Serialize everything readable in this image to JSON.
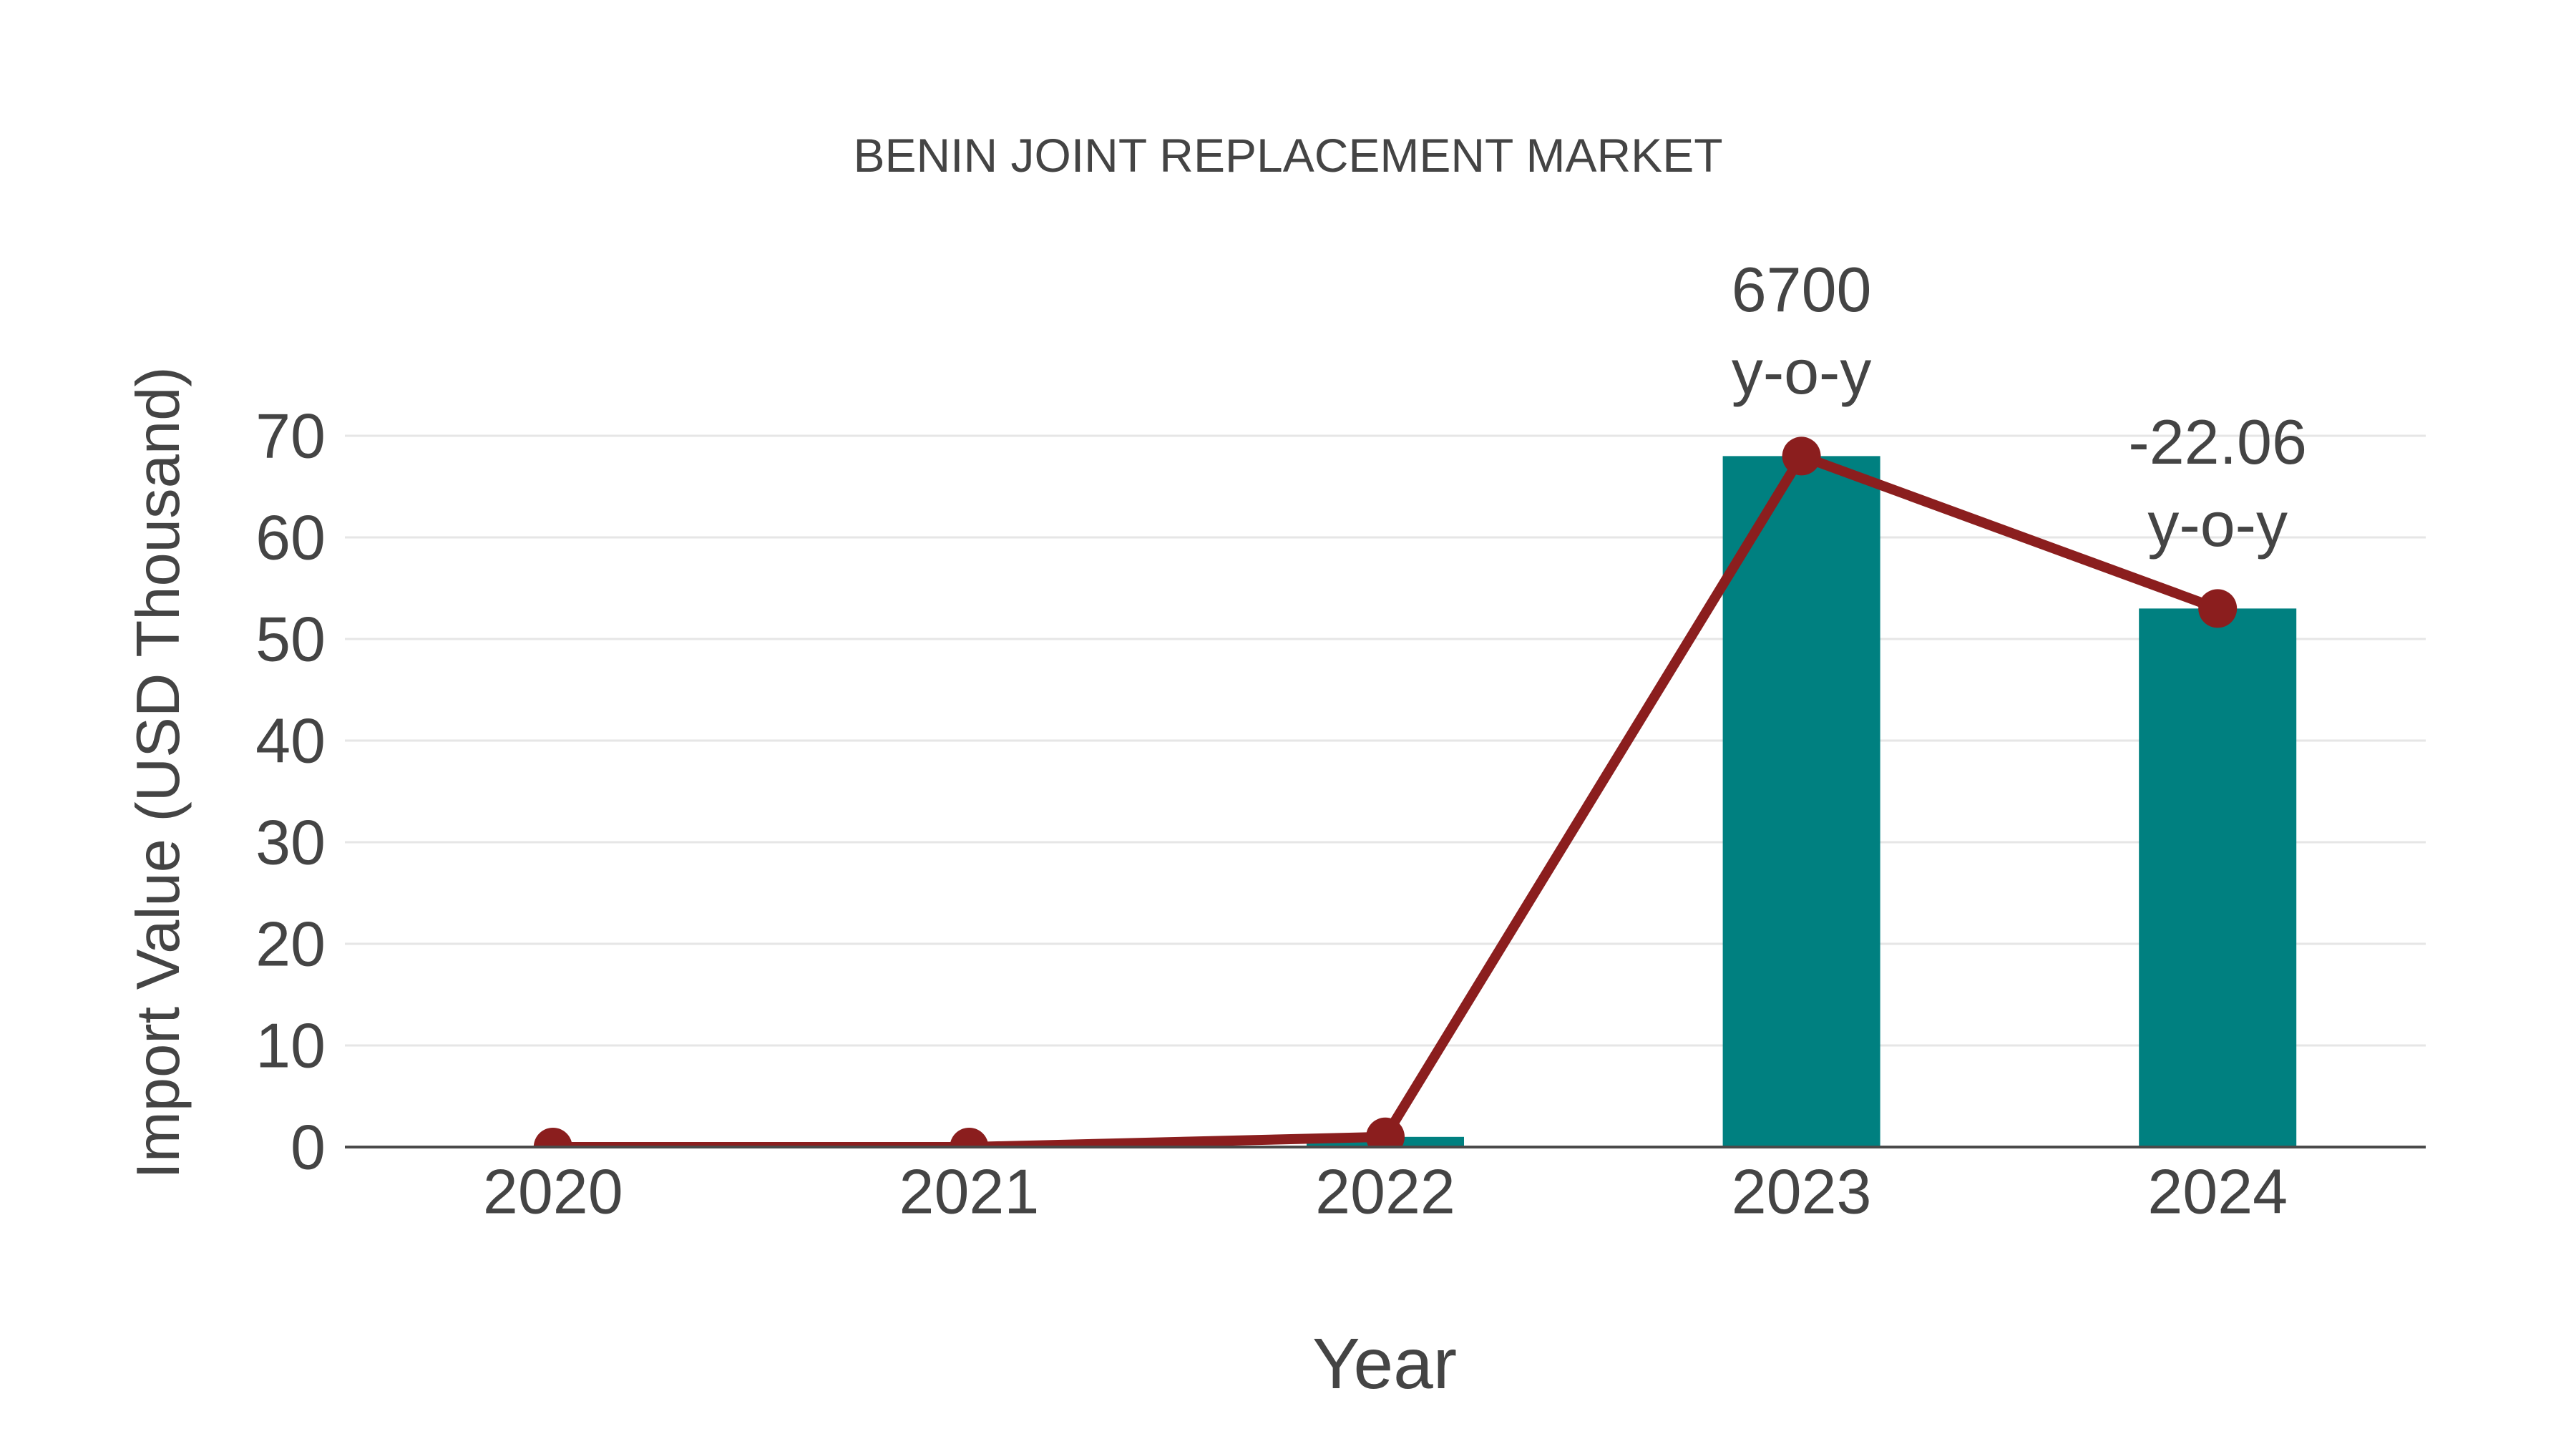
{
  "chart_data": {
    "type": "bar",
    "title": "BENIN JOINT REPLACEMENT MARKET",
    "xlabel": "Year",
    "ylabel": "Import Value (USD Thousand)",
    "categories": [
      "2020",
      "2021",
      "2022",
      "2023",
      "2024"
    ],
    "series": [
      {
        "name": "import-value-bars",
        "type": "bar",
        "values": [
          0,
          0,
          1,
          68,
          53
        ]
      },
      {
        "name": "import-value-trend",
        "type": "line",
        "values": [
          0,
          0,
          1,
          68,
          53
        ]
      }
    ],
    "annotations": [
      {
        "category": "2023",
        "lines": [
          "6700",
          "y-o-y"
        ]
      },
      {
        "category": "2024",
        "lines": [
          "-22.06",
          "y-o-y"
        ]
      }
    ],
    "yticks": [
      0,
      10,
      20,
      30,
      40,
      50,
      60,
      70
    ],
    "ylim": [
      0,
      73
    ],
    "grid": true,
    "legend_position": "none",
    "colors": {
      "bar": "#008080",
      "line": "#8B1E1E",
      "marker": "#8B1E1E",
      "text": "#444444",
      "grid": "#E6E6E6",
      "axis": "#4A4A4A",
      "background": "#FFFFFF"
    }
  }
}
